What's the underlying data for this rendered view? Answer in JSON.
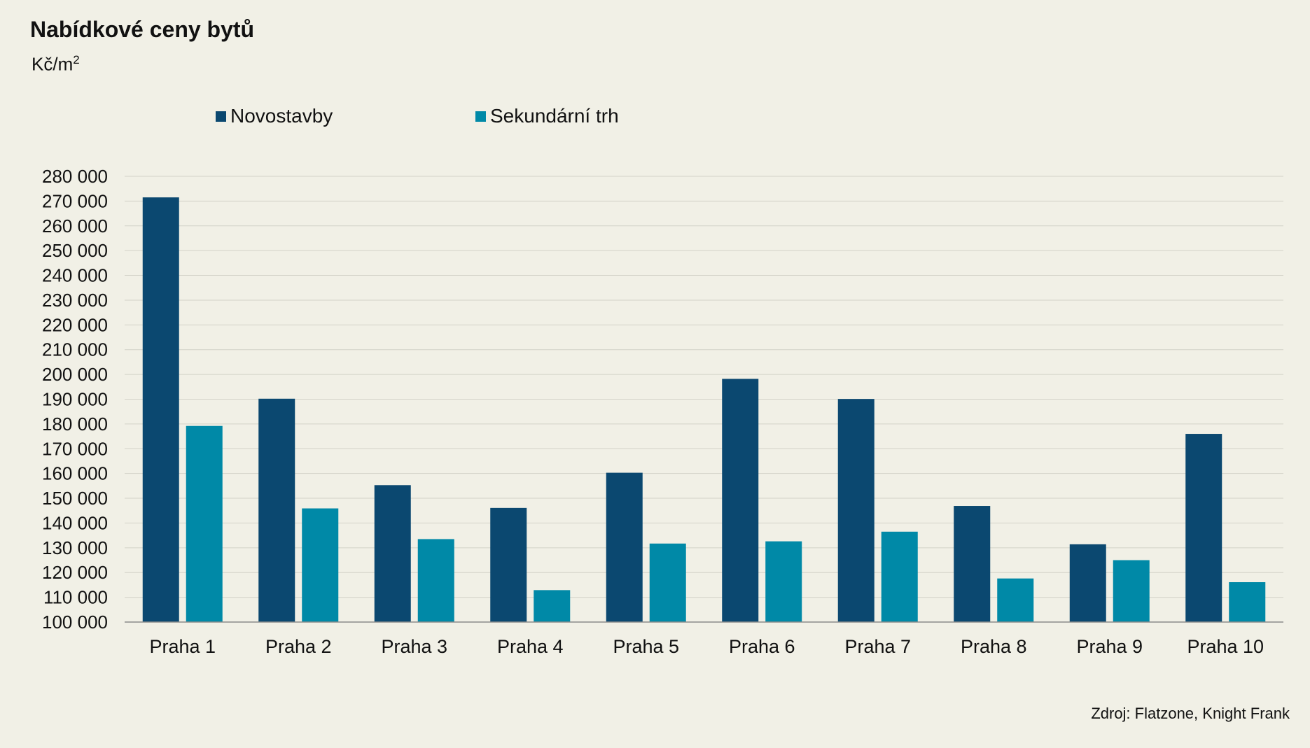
{
  "chart_data": {
    "type": "bar",
    "title": "Nabídkové ceny bytů",
    "unit_label": "Kč/m",
    "unit_superscript": "2",
    "source": "Zdroj: Flatzone, Knight Frank",
    "categories": [
      "Praha 1",
      "Praha 2",
      "Praha 3",
      "Praha 4",
      "Praha 5",
      "Praha 6",
      "Praha 7",
      "Praha 8",
      "Praha 9",
      "Praha 10"
    ],
    "series": [
      {
        "name": "Novostavby",
        "color": "#0b4870",
        "values": [
          271500,
          190200,
          155300,
          146100,
          160300,
          198200,
          190100,
          146900,
          131400,
          176000
        ]
      },
      {
        "name": "Sekundární trh",
        "color": "#0089a7",
        "values": [
          179200,
          145900,
          133500,
          112900,
          131700,
          132600,
          136500,
          117600,
          125000,
          116100
        ]
      }
    ],
    "ylim": [
      100000,
      280000
    ],
    "ytick_step": 10000,
    "ytick_labels": [
      "100 000",
      "110 000",
      "120 000",
      "130 000",
      "140 000",
      "150 000",
      "160 000",
      "170 000",
      "180 000",
      "190 000",
      "200 000",
      "210 000",
      "220 000",
      "230 000",
      "240 000",
      "250 000",
      "260 000",
      "270 000",
      "280 000"
    ],
    "grid": true,
    "legend_position": "top",
    "gridline_color": "#d3d2c8",
    "axis_color": "#8a8a8a",
    "background_color": "#f1f0e6"
  }
}
